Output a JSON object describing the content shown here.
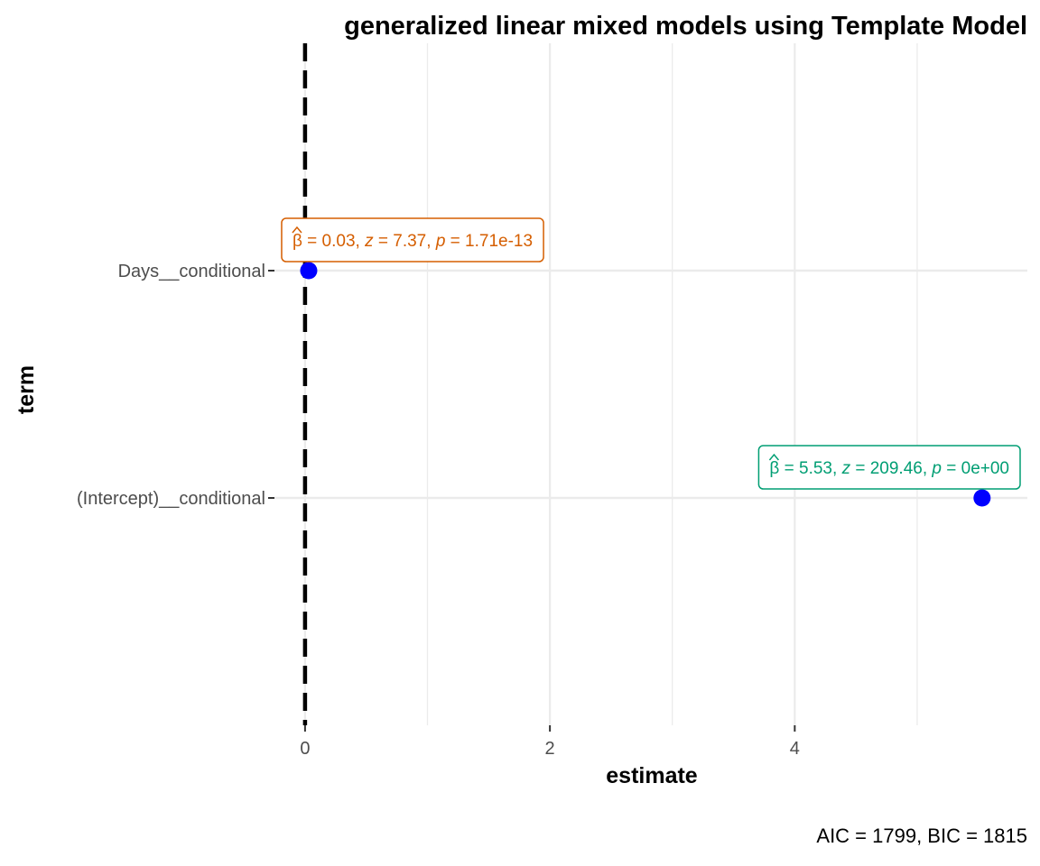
{
  "chart_data": {
    "type": "scatter",
    "title": "generalized linear mixed models using Template Model",
    "xlabel": "estimate",
    "ylabel": "term",
    "caption": "AIC = 1799, BIC = 1815",
    "xlim": [
      -0.25,
      5.9
    ],
    "x_ticks": [
      0,
      2,
      4
    ],
    "x_tick_labels": [
      "0",
      "2",
      "4"
    ],
    "categories": [
      "Days__conditional",
      "(Intercept)__conditional"
    ],
    "reference_line": {
      "x": 0,
      "style": "dashed",
      "color": "#000000"
    },
    "point_color": "#0000ff",
    "grid": true,
    "points": [
      {
        "term": "Days__conditional",
        "estimate": 0.03,
        "label_color": "#d55e00",
        "label": {
          "beta": "0.03",
          "z": "7.37",
          "p": "1.71e-13"
        }
      },
      {
        "term": "(Intercept)__conditional",
        "estimate": 5.53,
        "label_color": "#009e73",
        "label": {
          "beta": "5.53",
          "z": "209.46",
          "p": "0e+00"
        }
      }
    ]
  }
}
